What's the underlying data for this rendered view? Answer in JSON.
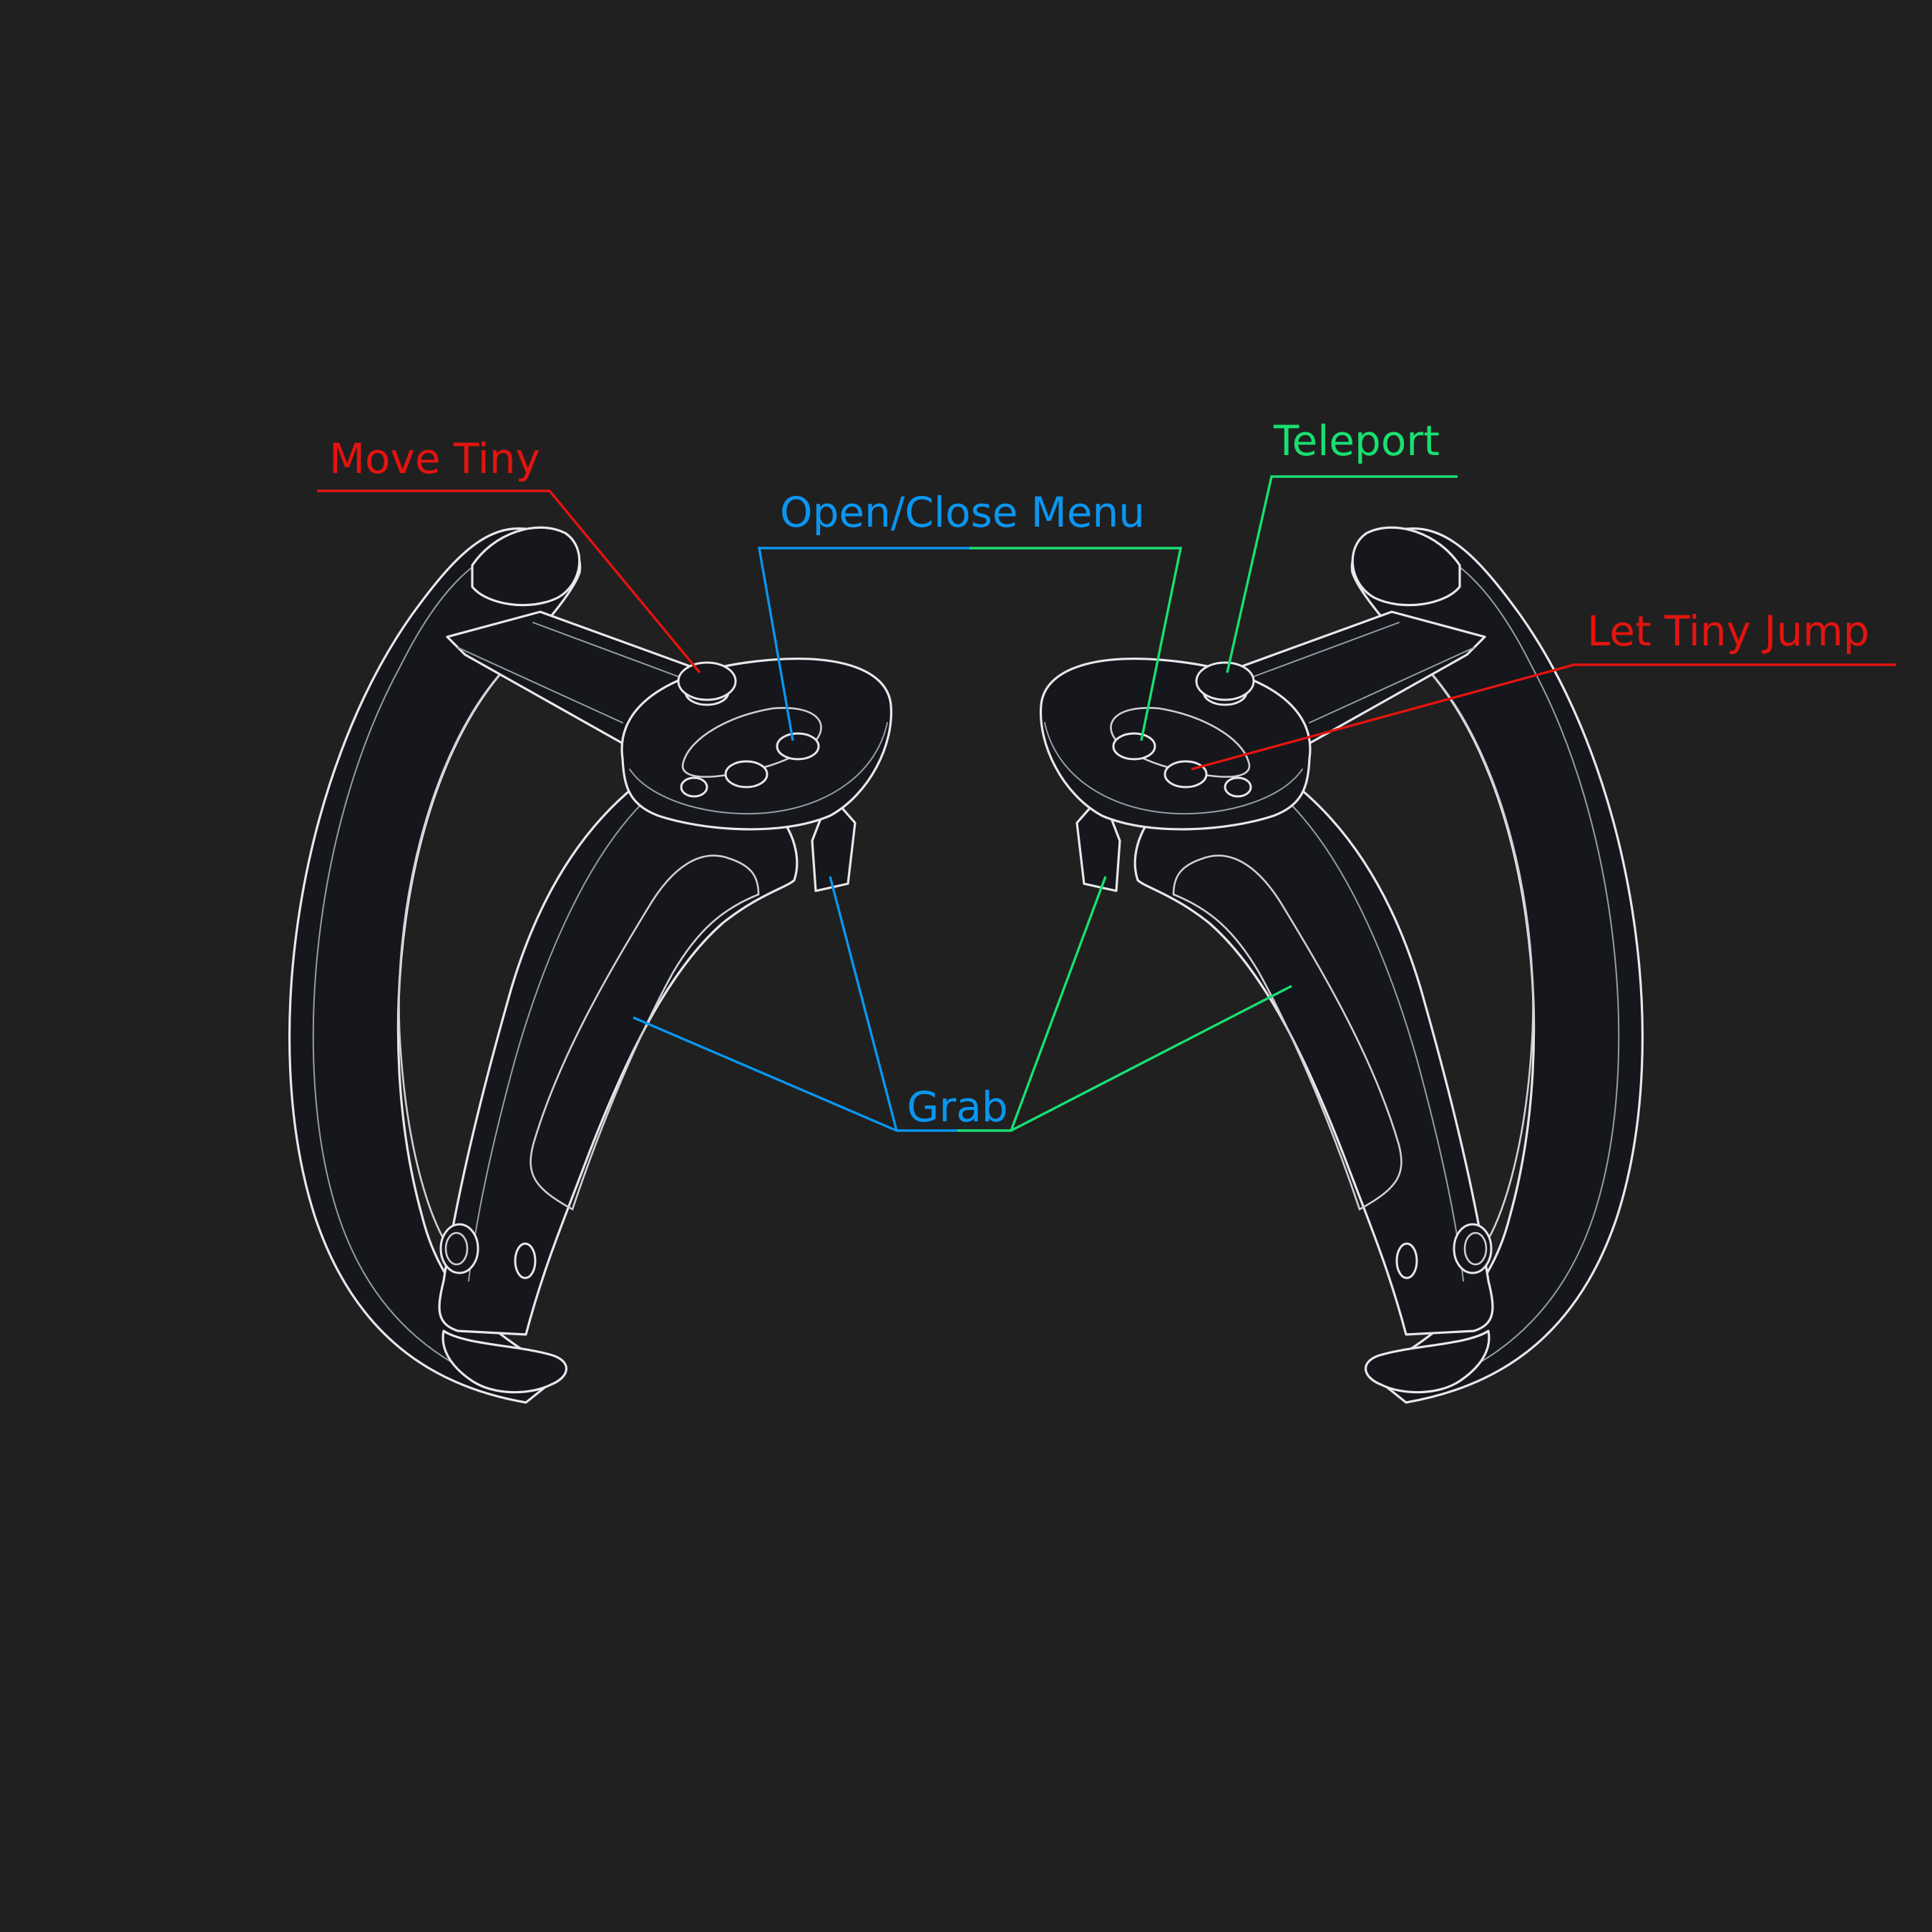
{
  "labels": {
    "move_tiny": "Move Tiny",
    "open_close_menu": "Open/Close Menu",
    "teleport": "Teleport",
    "let_tiny_jump": "Let Tiny Jump",
    "grab": "Grab"
  },
  "colors": {
    "background": "#202020",
    "controller_body": "#15171c",
    "controller_outline": "#e8e8ec",
    "left_controller_leaders": "#0a96f0",
    "right_controller_leaders": "#18e070",
    "joystick_leaders": "#e3140f"
  }
}
